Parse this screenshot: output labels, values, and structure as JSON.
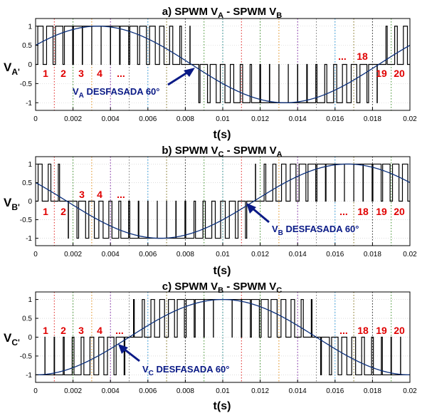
{
  "colors": {
    "sine": "#0b2f7a",
    "pwm": "#000000",
    "segment_label": "#e00000",
    "annotation": "#0a1a86",
    "grid": "#c8c8c8",
    "divider_palette": [
      "#e0201d",
      "#3a8e26",
      "#e08a12",
      "#7b1fa2",
      "#777777",
      "#1e90d6",
      "#7a6a14",
      "#222222",
      "#3a8e26",
      "#0f7d7d"
    ]
  },
  "chart_data": [
    {
      "type": "line",
      "title_main": "a) SPWM V",
      "title_sub1": "A",
      "title_mid": " - SPWM V",
      "title_sub2": "B",
      "ylabel_main": "V",
      "ylabel_sub": "A'",
      "xlabel": "t(s)",
      "xlim": [
        0,
        0.02
      ],
      "ylim": [
        -1.2,
        1.2
      ],
      "xticks": [
        0,
        0.002,
        0.004,
        0.006,
        0.008,
        0.01,
        0.012,
        0.014,
        0.016,
        0.018,
        0.02
      ],
      "xtick_labels": [
        "0",
        "0.002",
        "0.004",
        "0.006",
        "0.008",
        "0.01",
        "0.012",
        "0.014",
        "0.016",
        "0.018",
        "0.02"
      ],
      "yticks": [
        1,
        0.5,
        0,
        -0.5,
        -1
      ],
      "ytick_labels": [
        "1",
        "0.5",
        "0",
        "-0.5",
        "-1"
      ],
      "series": [
        {
          "name": "reference sine",
          "kind": "sine",
          "amplitude": 1,
          "frequency_hz": 50,
          "phase_deg": 30
        },
        {
          "name": "SPWM",
          "kind": "pwm",
          "levels": [
            1,
            0,
            -1
          ],
          "pulses_per_cycle": 20
        }
      ],
      "segment_labels": [
        "1",
        "2",
        "3",
        "4",
        "...",
        "...",
        "18",
        "19",
        "20"
      ],
      "annotation_main": "V",
      "annotation_sub": "A",
      "annotation_rest": " DESFASADA 60°"
    },
    {
      "type": "line",
      "title_main": "b) SPWM V",
      "title_sub1": "C",
      "title_mid": " - SPWM V",
      "title_sub2": "A",
      "ylabel_main": "V",
      "ylabel_sub": "B'",
      "xlabel": "t(s)",
      "xlim": [
        0,
        0.02
      ],
      "ylim": [
        -1.2,
        1.2
      ],
      "xticks": [
        0,
        0.002,
        0.004,
        0.006,
        0.008,
        0.01,
        0.012,
        0.014,
        0.016,
        0.018,
        0.02
      ],
      "xtick_labels": [
        "0",
        "0.002",
        "0.004",
        "0.006",
        "0.008",
        "0.01",
        "0.012",
        "0.014",
        "0.016",
        "0.018",
        "0.02"
      ],
      "yticks": [
        1,
        0.5,
        0,
        -0.5,
        -1
      ],
      "ytick_labels": [
        "1",
        "0.5",
        "0",
        "-0.5",
        "-1"
      ],
      "series": [
        {
          "name": "reference sine",
          "kind": "sine",
          "amplitude": 1,
          "frequency_hz": 50,
          "phase_deg": 150
        },
        {
          "name": "SPWM",
          "kind": "pwm",
          "levels": [
            1,
            0,
            -1
          ],
          "pulses_per_cycle": 20
        }
      ],
      "segment_labels": [
        "1",
        "2",
        "3",
        "4",
        "...",
        "...",
        "18",
        "19",
        "20"
      ],
      "annotation_main": "V",
      "annotation_sub": "B",
      "annotation_rest": " DESFASADA 60°"
    },
    {
      "type": "line",
      "title_main": "c) SPWM V",
      "title_sub1": "B",
      "title_mid": " - SPWM V",
      "title_sub2": "C",
      "ylabel_main": "V",
      "ylabel_sub": "C'",
      "xlabel": "t(s)",
      "xlim": [
        0,
        0.02
      ],
      "ylim": [
        -1.2,
        1.2
      ],
      "xticks": [
        0,
        0.002,
        0.004,
        0.006,
        0.008,
        0.01,
        0.012,
        0.014,
        0.016,
        0.018,
        0.02
      ],
      "xtick_labels": [
        "0",
        "0.002",
        "0.004",
        "0.006",
        "0.008",
        "0.01",
        "0.012",
        "0.014",
        "0.016",
        "0.018",
        "0.02"
      ],
      "yticks": [
        1,
        0.5,
        0,
        -0.5,
        -1
      ],
      "ytick_labels": [
        "1",
        "0.5",
        "0",
        "-0.5",
        "-1"
      ],
      "series": [
        {
          "name": "reference sine",
          "kind": "sine",
          "amplitude": 1,
          "frequency_hz": 50,
          "phase_deg": -90
        },
        {
          "name": "SPWM",
          "kind": "pwm",
          "levels": [
            1,
            0,
            -1
          ],
          "pulses_per_cycle": 20
        }
      ],
      "segment_labels": [
        "1",
        "2",
        "3",
        "4",
        "...",
        "...",
        "18",
        "19",
        "20"
      ],
      "annotation_main": "V",
      "annotation_sub": "C",
      "annotation_rest": " DESFASADA 60°"
    }
  ]
}
